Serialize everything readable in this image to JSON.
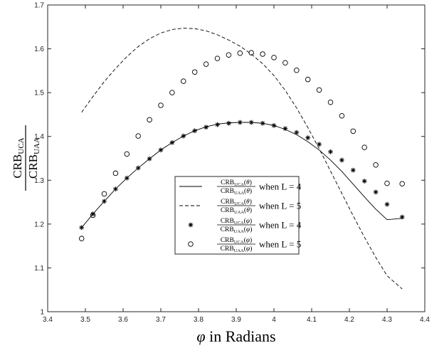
{
  "chart_data": {
    "type": "line",
    "xlabel": {
      "var": "φ",
      "text": "in Radians"
    },
    "ylabel": {
      "numerator": {
        "base": "CRB",
        "sub": "UCA"
      },
      "denominator": {
        "base": "CRB",
        "sub": "UAA"
      }
    },
    "xlim": [
      3.4,
      4.4
    ],
    "ylim": [
      1.0,
      1.7
    ],
    "xticks": [
      "3.4",
      "3.5",
      "3.6",
      "3.7",
      "3.8",
      "3.9",
      "4",
      "4.1",
      "4.2",
      "4.3",
      "4.4"
    ],
    "yticks": [
      "1",
      "1.1",
      "1.2",
      "1.3",
      "1.4",
      "1.5",
      "1.6",
      "1.7"
    ],
    "grid": false,
    "legend_position": "center-bottom",
    "series": [
      {
        "label": {
          "num": "CRB",
          "num_sub": "UCA",
          "arg": "θ",
          "den": "CRB",
          "den_sub": "UAA",
          "cond": "when L = 4"
        },
        "style": "solid",
        "x": [
          3.49,
          3.52,
          3.55,
          3.58,
          3.61,
          3.64,
          3.67,
          3.7,
          3.73,
          3.76,
          3.79,
          3.82,
          3.85,
          3.88,
          3.91,
          3.94,
          3.97,
          4.0,
          4.03,
          4.06,
          4.09,
          4.12,
          4.15,
          4.18,
          4.21,
          4.24,
          4.27,
          4.3,
          4.34
        ],
        "y": [
          1.192,
          1.223,
          1.252,
          1.28,
          1.305,
          1.328,
          1.349,
          1.369,
          1.386,
          1.401,
          1.413,
          1.422,
          1.428,
          1.431,
          1.432,
          1.432,
          1.43,
          1.425,
          1.416,
          1.404,
          1.388,
          1.369,
          1.346,
          1.32,
          1.291,
          1.262,
          1.234,
          1.21,
          1.213
        ]
      },
      {
        "label": {
          "num": "CRB",
          "num_sub": "UCA",
          "arg": "θ",
          "den": "CRB",
          "den_sub": "UAA",
          "cond": "when L = 5"
        },
        "style": "dashed",
        "x": [
          3.49,
          3.52,
          3.55,
          3.58,
          3.61,
          3.64,
          3.67,
          3.7,
          3.73,
          3.76,
          3.79,
          3.82,
          3.85,
          3.88,
          3.91,
          3.94,
          3.97,
          4.0,
          4.03,
          4.06,
          4.09,
          4.12,
          4.15,
          4.18,
          4.21,
          4.24,
          4.27,
          4.3,
          4.34
        ],
        "y": [
          1.455,
          1.491,
          1.525,
          1.555,
          1.582,
          1.605,
          1.623,
          1.636,
          1.644,
          1.647,
          1.646,
          1.641,
          1.632,
          1.62,
          1.606,
          1.588,
          1.566,
          1.539,
          1.505,
          1.465,
          1.42,
          1.372,
          1.321,
          1.27,
          1.219,
          1.17,
          1.124,
          1.082,
          1.052
        ]
      },
      {
        "label": {
          "num": "CRB",
          "num_sub": "UCA",
          "arg": "φ",
          "den": "CRB",
          "den_sub": "UAA",
          "cond": "when L = 4"
        },
        "style": "marker-star",
        "x": [
          3.49,
          3.52,
          3.55,
          3.58,
          3.61,
          3.64,
          3.67,
          3.7,
          3.73,
          3.76,
          3.79,
          3.82,
          3.85,
          3.88,
          3.91,
          3.94,
          3.97,
          4.0,
          4.03,
          4.06,
          4.09,
          4.12,
          4.15,
          4.18,
          4.21,
          4.24,
          4.27,
          4.3,
          4.34
        ],
        "y": [
          1.192,
          1.223,
          1.252,
          1.28,
          1.305,
          1.328,
          1.349,
          1.369,
          1.386,
          1.401,
          1.413,
          1.421,
          1.427,
          1.43,
          1.432,
          1.432,
          1.43,
          1.425,
          1.418,
          1.409,
          1.397,
          1.382,
          1.365,
          1.346,
          1.323,
          1.298,
          1.273,
          1.245,
          1.216
        ]
      },
      {
        "label": {
          "num": "CRB",
          "num_sub": "UCA",
          "arg": "φ",
          "den": "CRB",
          "den_sub": "UAA",
          "cond": "when L = 5"
        },
        "style": "marker-circle",
        "x": [
          3.49,
          3.52,
          3.55,
          3.58,
          3.61,
          3.64,
          3.67,
          3.7,
          3.73,
          3.76,
          3.79,
          3.82,
          3.85,
          3.88,
          3.91,
          3.94,
          3.97,
          4.0,
          4.03,
          4.06,
          4.09,
          4.12,
          4.15,
          4.18,
          4.21,
          4.24,
          4.27,
          4.3,
          4.34
        ],
        "y": [
          1.167,
          1.22,
          1.269,
          1.316,
          1.36,
          1.401,
          1.438,
          1.471,
          1.5,
          1.526,
          1.547,
          1.565,
          1.578,
          1.586,
          1.59,
          1.591,
          1.588,
          1.58,
          1.568,
          1.551,
          1.53,
          1.506,
          1.478,
          1.447,
          1.412,
          1.375,
          1.335,
          1.293,
          1.292
        ]
      }
    ]
  }
}
